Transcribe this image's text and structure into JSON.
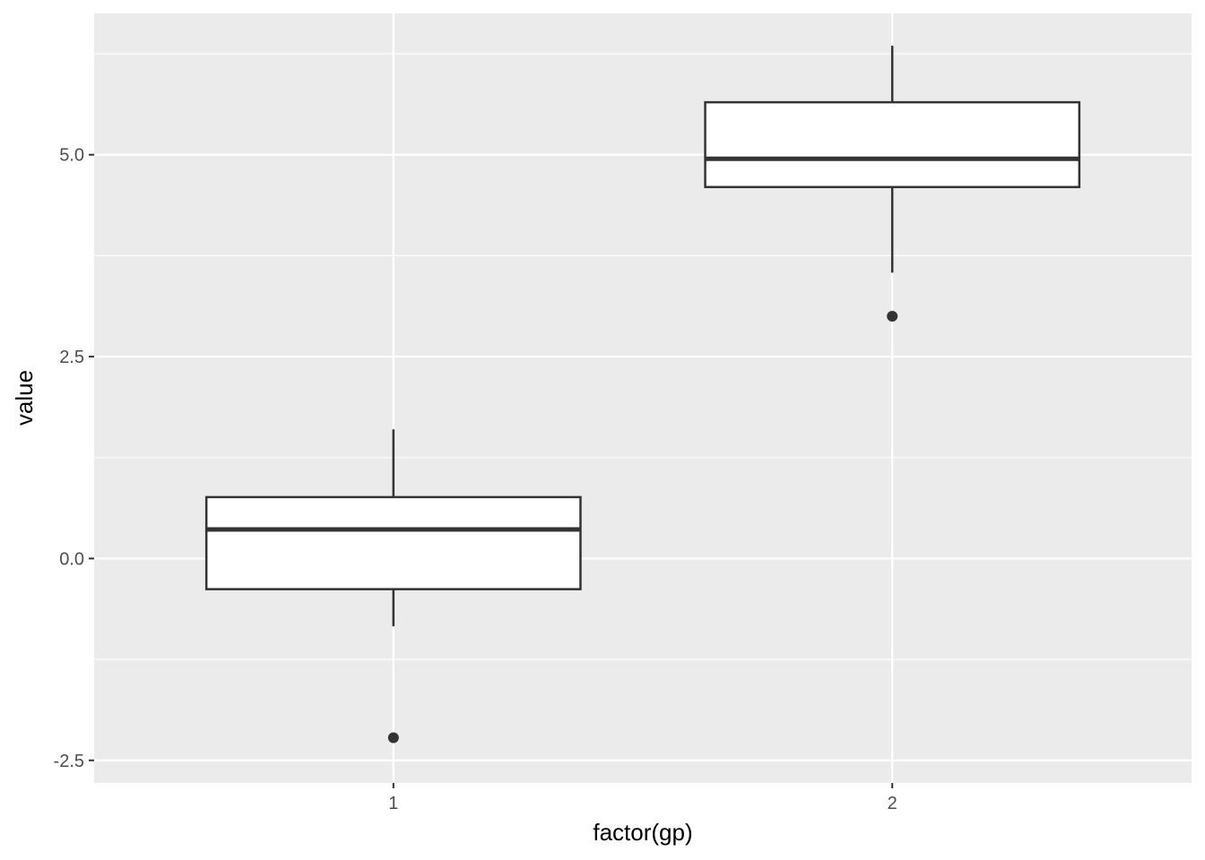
{
  "chart_data": {
    "type": "boxplot",
    "title": "",
    "xlabel": "factor(gp)",
    "ylabel": "value",
    "categories": [
      "1",
      "2"
    ],
    "ylim": [
      -2.78,
      6.75
    ],
    "y_ticks": [
      -2.5,
      0.0,
      2.5,
      5.0
    ],
    "y_tick_labels": [
      "-2.5",
      "0.0",
      "2.5",
      "5.0"
    ],
    "grid": true,
    "boxes": [
      {
        "category": "1",
        "lower_whisker": -0.84,
        "q1": -0.38,
        "median": 0.36,
        "q3": 0.76,
        "upper_whisker": 1.6,
        "outliers": [
          -2.22
        ]
      },
      {
        "category": "2",
        "lower_whisker": 3.54,
        "q1": 4.6,
        "median": 4.95,
        "q3": 5.65,
        "upper_whisker": 6.35,
        "outliers": [
          3.0
        ]
      }
    ],
    "colors": {
      "panel": "#ebebeb",
      "grid": "#ffffff",
      "box_fill": "#ffffff",
      "box_line": "#333333"
    }
  }
}
